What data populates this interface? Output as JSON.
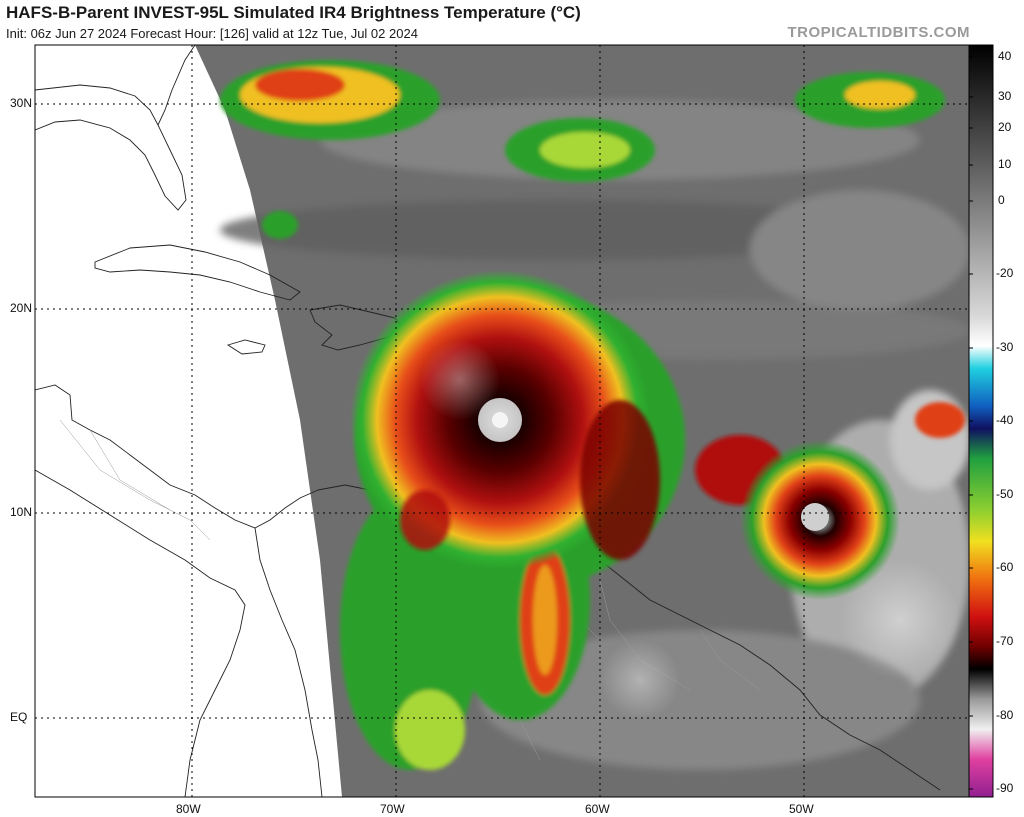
{
  "header": {
    "title": "HAFS-B-Parent INVEST-95L Simulated IR4 Brightness Temperature (°C)",
    "subtitle": "Init: 06z Jun 27 2024   Forecast Hour: [126]   valid at 12z Tue, Jul 02 2024",
    "credit": "TROPICALTIDBITS.COM"
  },
  "map": {
    "lat_labels": [
      "30N",
      "20N",
      "10N",
      "EQ"
    ],
    "lon_labels": [
      "80W",
      "70W",
      "60W",
      "50W"
    ],
    "colorbar": {
      "unit": "°C",
      "ticks": [
        "40",
        "30",
        "20",
        "10",
        "0",
        "-20",
        "-30",
        "-40",
        "-50",
        "-60",
        "-70",
        "-80",
        "-90"
      ]
    }
  }
}
